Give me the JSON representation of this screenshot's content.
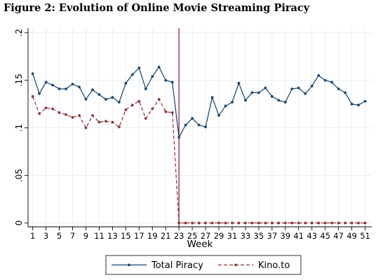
{
  "figure": {
    "label": "Figure 2:",
    "caption": "Evolution of Online Movie Streaming Piracy"
  },
  "chart_data": {
    "type": "line",
    "title": "Evolution of Online Movie Streaming Piracy",
    "xlabel": "Week",
    "ylabel": "",
    "x": [
      1,
      2,
      3,
      4,
      5,
      6,
      7,
      8,
      9,
      10,
      11,
      12,
      13,
      14,
      15,
      16,
      17,
      18,
      19,
      20,
      21,
      22,
      23,
      24,
      25,
      26,
      27,
      28,
      29,
      30,
      31,
      32,
      33,
      34,
      35,
      36,
      37,
      38,
      39,
      40,
      41,
      42,
      43,
      44,
      45,
      46,
      47,
      48,
      49,
      50,
      51
    ],
    "xlim": [
      0.3,
      52
    ],
    "ylim": [
      -0.004,
      0.205
    ],
    "x_ticks": [
      1,
      3,
      5,
      7,
      9,
      11,
      13,
      15,
      17,
      19,
      21,
      23,
      25,
      27,
      29,
      31,
      33,
      35,
      37,
      39,
      41,
      43,
      45,
      47,
      49,
      51
    ],
    "y_ticks": [
      0,
      0.05,
      0.1,
      0.15,
      0.2
    ],
    "y_tick_labels": [
      "0",
      ".05",
      ".1",
      ".15",
      ".2"
    ],
    "grid": true,
    "vertical_line_x": 23,
    "vertical_line_color": "#a0213e",
    "legend_position": "bottom",
    "series": [
      {
        "name": "Total Piracy",
        "color": "#1a476f",
        "style": "solid",
        "values": [
          0.157,
          0.136,
          0.148,
          0.145,
          0.141,
          0.141,
          0.146,
          0.143,
          0.13,
          0.14,
          0.135,
          0.13,
          0.132,
          0.127,
          0.147,
          0.156,
          0.163,
          0.141,
          0.154,
          0.164,
          0.15,
          0.148,
          0.09,
          0.103,
          0.11,
          0.103,
          0.101,
          0.132,
          0.113,
          0.123,
          0.127,
          0.147,
          0.129,
          0.137,
          0.137,
          0.142,
          0.133,
          0.129,
          0.127,
          0.141,
          0.142,
          0.136,
          0.144,
          0.155,
          0.15,
          0.148,
          0.141,
          0.137,
          0.125,
          0.124,
          0.128
        ]
      },
      {
        "name": "Kino.to",
        "color": "#90353b",
        "style": "dashed",
        "values": [
          0.133,
          0.115,
          0.121,
          0.12,
          0.116,
          0.114,
          0.111,
          0.113,
          0.1,
          0.113,
          0.106,
          0.107,
          0.106,
          0.101,
          0.119,
          0.124,
          0.128,
          0.11,
          0.12,
          0.13,
          0.117,
          0.116,
          0,
          0,
          0,
          0,
          0,
          0,
          0,
          0,
          0,
          0,
          0,
          0,
          0,
          0,
          0,
          0,
          0,
          0,
          0,
          0,
          0,
          0,
          0,
          0,
          0,
          0,
          0,
          0,
          0
        ]
      }
    ]
  }
}
